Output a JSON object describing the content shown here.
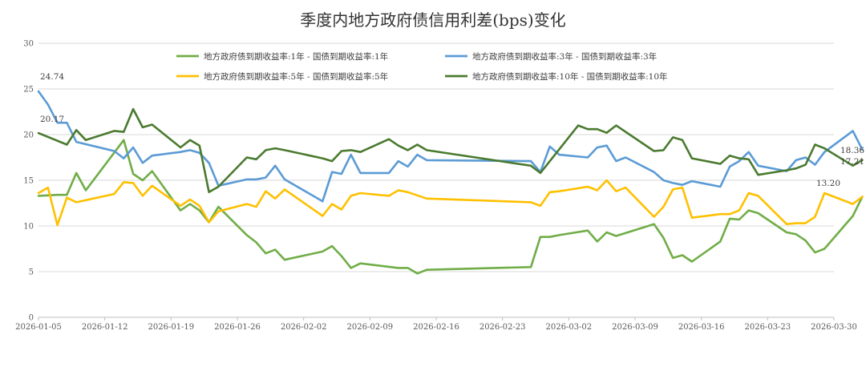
{
  "chart_data": {
    "type": "line",
    "title": "季度内地方政府债信用利差(bps)变化",
    "xlabel": "",
    "ylabel": "",
    "ylim": [
      0,
      30
    ],
    "yticks": [
      0,
      5,
      10,
      15,
      20,
      25,
      30
    ],
    "x_range": [
      "2026-01-05",
      "2026-03-30"
    ],
    "x_ticks": [
      "2026-01-05",
      "2026-01-12",
      "2026-01-19",
      "2026-01-26",
      "2026-02-02",
      "2026-02-09",
      "2026-02-16",
      "2026-02-23",
      "2026-03-02",
      "2026-03-09",
      "2026-03-16",
      "2026-03-23",
      "2026-03-30"
    ],
    "grid": "horizontal",
    "legend_position": "top",
    "series": [
      {
        "name": "地方政府债到期收益率:1年 - 国债到期收益率:1年",
        "color": "#70ad47",
        "points": [
          [
            "2026-01-05",
            13.3
          ],
          [
            "2026-01-07",
            13.4
          ],
          [
            "2026-01-08",
            13.4
          ],
          [
            "2026-01-09",
            15.8
          ],
          [
            "2026-01-10",
            13.9
          ],
          [
            "2026-01-14",
            19.4
          ],
          [
            "2026-01-15",
            15.7
          ],
          [
            "2026-01-16",
            15.0
          ],
          [
            "2026-01-17",
            16.0
          ],
          [
            "2026-01-20",
            11.7
          ],
          [
            "2026-01-21",
            12.4
          ],
          [
            "2026-01-22",
            11.7
          ],
          [
            "2026-01-23",
            10.4
          ],
          [
            "2026-01-24",
            12.1
          ],
          [
            "2026-01-27",
            9.0
          ],
          [
            "2026-01-28",
            8.2
          ],
          [
            "2026-01-29",
            7.0
          ],
          [
            "2026-01-30",
            7.4
          ],
          [
            "2026-01-31",
            6.3
          ],
          [
            "2026-02-04",
            7.2
          ],
          [
            "2026-02-05",
            7.8
          ],
          [
            "2026-02-06",
            6.7
          ],
          [
            "2026-02-07",
            5.4
          ],
          [
            "2026-02-08",
            5.9
          ],
          [
            "2026-02-12",
            5.4
          ],
          [
            "2026-02-13",
            5.4
          ],
          [
            "2026-02-14",
            4.8
          ],
          [
            "2026-02-15",
            5.2
          ],
          [
            "2026-02-26",
            5.5
          ],
          [
            "2026-02-27",
            8.8
          ],
          [
            "2026-02-28",
            8.8
          ],
          [
            "2026-03-01",
            9.0
          ],
          [
            "2026-03-04",
            9.5
          ],
          [
            "2026-03-05",
            8.3
          ],
          [
            "2026-03-06",
            9.3
          ],
          [
            "2026-03-07",
            8.9
          ],
          [
            "2026-03-11",
            10.2
          ],
          [
            "2026-03-12",
            8.7
          ],
          [
            "2026-03-13",
            6.5
          ],
          [
            "2026-03-14",
            6.8
          ],
          [
            "2026-03-15",
            6.1
          ],
          [
            "2026-03-18",
            8.3
          ],
          [
            "2026-03-19",
            10.8
          ],
          [
            "2026-03-20",
            10.7
          ],
          [
            "2026-03-21",
            11.7
          ],
          [
            "2026-03-22",
            11.4
          ],
          [
            "2026-03-25",
            9.3
          ],
          [
            "2026-03-26",
            9.1
          ],
          [
            "2026-03-27",
            8.4
          ],
          [
            "2026-03-28",
            7.1
          ],
          [
            "2026-03-29",
            7.5
          ],
          [
            "2026-04-01",
            11.1
          ],
          [
            "2026-04-02",
            13.2
          ]
        ]
      },
      {
        "name": "地方政府债到期收益率:3年 - 国债到期收益率:3年",
        "color": "#5b9bd5",
        "points": [
          [
            "2026-01-05",
            24.74
          ],
          [
            "2026-01-06",
            23.3
          ],
          [
            "2026-01-07",
            21.3
          ],
          [
            "2026-01-08",
            21.3
          ],
          [
            "2026-01-09",
            19.2
          ],
          [
            "2026-01-13",
            18.2
          ],
          [
            "2026-01-14",
            17.4
          ],
          [
            "2026-01-15",
            18.6
          ],
          [
            "2026-01-16",
            16.9
          ],
          [
            "2026-01-17",
            17.7
          ],
          [
            "2026-01-20",
            18.1
          ],
          [
            "2026-01-21",
            18.3
          ],
          [
            "2026-01-22",
            18.0
          ],
          [
            "2026-01-23",
            16.9
          ],
          [
            "2026-01-24",
            14.4
          ],
          [
            "2026-01-27",
            15.1
          ],
          [
            "2026-01-28",
            15.1
          ],
          [
            "2026-01-29",
            15.3
          ],
          [
            "2026-01-30",
            16.6
          ],
          [
            "2026-01-31",
            15.1
          ],
          [
            "2026-02-04",
            12.7
          ],
          [
            "2026-02-05",
            15.9
          ],
          [
            "2026-02-06",
            15.7
          ],
          [
            "2026-02-07",
            17.8
          ],
          [
            "2026-02-08",
            15.8
          ],
          [
            "2026-02-11",
            15.8
          ],
          [
            "2026-02-12",
            17.1
          ],
          [
            "2026-02-13",
            16.5
          ],
          [
            "2026-02-14",
            17.8
          ],
          [
            "2026-02-15",
            17.2
          ],
          [
            "2026-02-26",
            17.1
          ],
          [
            "2026-02-27",
            15.9
          ],
          [
            "2026-02-28",
            18.7
          ],
          [
            "2026-03-01",
            17.8
          ],
          [
            "2026-03-04",
            17.5
          ],
          [
            "2026-03-05",
            18.6
          ],
          [
            "2026-03-06",
            18.8
          ],
          [
            "2026-03-07",
            17.1
          ],
          [
            "2026-03-08",
            17.5
          ],
          [
            "2026-03-11",
            15.9
          ],
          [
            "2026-03-12",
            15.0
          ],
          [
            "2026-03-13",
            14.7
          ],
          [
            "2026-03-14",
            14.5
          ],
          [
            "2026-03-15",
            14.9
          ],
          [
            "2026-03-18",
            14.3
          ],
          [
            "2026-03-19",
            16.5
          ],
          [
            "2026-03-20",
            17.1
          ],
          [
            "2026-03-21",
            18.1
          ],
          [
            "2026-03-22",
            16.6
          ],
          [
            "2026-03-25",
            16.0
          ],
          [
            "2026-03-26",
            17.2
          ],
          [
            "2026-03-27",
            17.5
          ],
          [
            "2026-03-28",
            16.7
          ],
          [
            "2026-03-29",
            18.1
          ],
          [
            "2026-04-01",
            20.4
          ],
          [
            "2026-04-02",
            18.36
          ]
        ]
      },
      {
        "name": "地方政府债到期收益率:5年 - 国债到期收益率:5年",
        "color": "#ffc000",
        "points": [
          [
            "2026-01-05",
            13.6
          ],
          [
            "2026-01-06",
            14.2
          ],
          [
            "2026-01-07",
            10.1
          ],
          [
            "2026-01-08",
            13.1
          ],
          [
            "2026-01-09",
            12.6
          ],
          [
            "2026-01-13",
            13.5
          ],
          [
            "2026-01-14",
            14.8
          ],
          [
            "2026-01-15",
            14.7
          ],
          [
            "2026-01-16",
            13.3
          ],
          [
            "2026-01-17",
            14.4
          ],
          [
            "2026-01-20",
            12.2
          ],
          [
            "2026-01-21",
            12.9
          ],
          [
            "2026-01-22",
            12.2
          ],
          [
            "2026-01-23",
            10.4
          ],
          [
            "2026-01-24",
            11.6
          ],
          [
            "2026-01-27",
            12.4
          ],
          [
            "2026-01-28",
            12.1
          ],
          [
            "2026-01-29",
            13.8
          ],
          [
            "2026-01-30",
            13.0
          ],
          [
            "2026-01-31",
            14.0
          ],
          [
            "2026-02-04",
            11.1
          ],
          [
            "2026-02-05",
            12.4
          ],
          [
            "2026-02-06",
            11.8
          ],
          [
            "2026-02-07",
            13.3
          ],
          [
            "2026-02-08",
            13.6
          ],
          [
            "2026-02-11",
            13.3
          ],
          [
            "2026-02-12",
            13.9
          ],
          [
            "2026-02-13",
            13.7
          ],
          [
            "2026-02-15",
            13.0
          ],
          [
            "2026-02-26",
            12.6
          ],
          [
            "2026-02-27",
            12.2
          ],
          [
            "2026-02-28",
            13.7
          ],
          [
            "2026-03-01",
            13.8
          ],
          [
            "2026-03-04",
            14.3
          ],
          [
            "2026-03-05",
            13.9
          ],
          [
            "2026-03-06",
            15.0
          ],
          [
            "2026-03-07",
            13.8
          ],
          [
            "2026-03-08",
            14.2
          ],
          [
            "2026-03-11",
            11.0
          ],
          [
            "2026-03-12",
            12.1
          ],
          [
            "2026-03-13",
            14.0
          ],
          [
            "2026-03-14",
            14.2
          ],
          [
            "2026-03-15",
            10.9
          ],
          [
            "2026-03-18",
            11.3
          ],
          [
            "2026-03-19",
            11.3
          ],
          [
            "2026-03-20",
            11.7
          ],
          [
            "2026-03-21",
            13.6
          ],
          [
            "2026-03-22",
            13.3
          ],
          [
            "2026-03-25",
            10.2
          ],
          [
            "2026-03-26",
            10.3
          ],
          [
            "2026-03-27",
            10.3
          ],
          [
            "2026-03-28",
            11.0
          ],
          [
            "2026-03-29",
            13.6
          ],
          [
            "2026-04-01",
            12.4
          ],
          [
            "2026-04-02",
            13.2
          ]
        ]
      },
      {
        "name": "地方政府债到期收益率:10年 - 国债到期收益率:10年",
        "color": "#4a7a2f",
        "points": [
          [
            "2026-01-05",
            20.17
          ],
          [
            "2026-01-08",
            18.9
          ],
          [
            "2026-01-09",
            20.5
          ],
          [
            "2026-01-10",
            19.4
          ],
          [
            "2026-01-13",
            20.4
          ],
          [
            "2026-01-14",
            20.3
          ],
          [
            "2026-01-15",
            22.8
          ],
          [
            "2026-01-16",
            20.8
          ],
          [
            "2026-01-17",
            21.1
          ],
          [
            "2026-01-20",
            18.6
          ],
          [
            "2026-01-21",
            19.4
          ],
          [
            "2026-01-22",
            18.8
          ],
          [
            "2026-01-23",
            13.7
          ],
          [
            "2026-01-24",
            14.3
          ],
          [
            "2026-01-27",
            17.5
          ],
          [
            "2026-01-28",
            17.3
          ],
          [
            "2026-01-29",
            18.3
          ],
          [
            "2026-01-30",
            18.5
          ],
          [
            "2026-01-31",
            18.3
          ],
          [
            "2026-02-04",
            17.4
          ],
          [
            "2026-02-05",
            17.1
          ],
          [
            "2026-02-06",
            18.2
          ],
          [
            "2026-02-07",
            18.3
          ],
          [
            "2026-02-08",
            18.1
          ],
          [
            "2026-02-11",
            19.5
          ],
          [
            "2026-02-12",
            18.8
          ],
          [
            "2026-02-13",
            18.3
          ],
          [
            "2026-02-14",
            18.9
          ],
          [
            "2026-02-15",
            18.3
          ],
          [
            "2026-02-26",
            16.6
          ],
          [
            "2026-02-27",
            15.8
          ],
          [
            "2026-03-03",
            21.0
          ],
          [
            "2026-03-04",
            20.6
          ],
          [
            "2026-03-05",
            20.6
          ],
          [
            "2026-03-06",
            20.2
          ],
          [
            "2026-03-07",
            21.0
          ],
          [
            "2026-03-11",
            18.2
          ],
          [
            "2026-03-12",
            18.3
          ],
          [
            "2026-03-13",
            19.7
          ],
          [
            "2026-03-14",
            19.4
          ],
          [
            "2026-03-15",
            17.4
          ],
          [
            "2026-03-18",
            16.8
          ],
          [
            "2026-03-19",
            17.7
          ],
          [
            "2026-03-20",
            17.4
          ],
          [
            "2026-03-21",
            17.3
          ],
          [
            "2026-03-22",
            15.6
          ],
          [
            "2026-03-25",
            16.1
          ],
          [
            "2026-03-26",
            16.3
          ],
          [
            "2026-03-27",
            16.7
          ],
          [
            "2026-03-28",
            18.9
          ],
          [
            "2026-03-29",
            18.5
          ],
          [
            "2026-04-01",
            16.6
          ],
          [
            "2026-04-02",
            17.21
          ]
        ]
      }
    ],
    "annotations": [
      {
        "text": "24.74",
        "color": "#404040"
      },
      {
        "text": "20.17",
        "color": "#404040"
      },
      {
        "text": "18.36",
        "color": "#404040"
      },
      {
        "text": "17.21",
        "color": "#404040"
      },
      {
        "text": "13.20",
        "color": "#404040"
      }
    ]
  }
}
